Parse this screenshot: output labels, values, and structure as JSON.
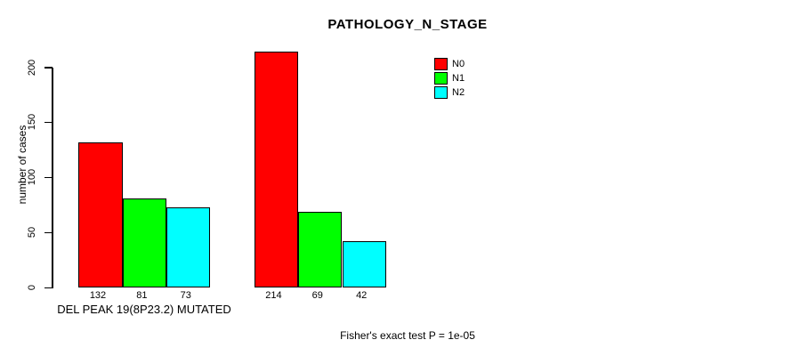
{
  "page": {
    "background_color": "#ffffff",
    "text_color": "#000000"
  },
  "chart_data": {
    "type": "bar",
    "title": "PATHOLOGY_N_STAGE",
    "ylabel": "number of cases",
    "xlabel": "DEL PEAK 19(8P23.2) MUTATED",
    "footer": "Fisher's exact test P = 1e-05",
    "grid": false,
    "legend_position": "top-right-inside",
    "y_ticks": [
      0,
      50,
      100,
      150,
      200
    ],
    "ylim": [
      0,
      215
    ],
    "categories": [
      "DEL PEAK 19(8P23.2) MUTATED",
      ""
    ],
    "series": [
      {
        "name": "N0",
        "color": "#ff0000",
        "values": [
          132,
          214
        ]
      },
      {
        "name": "N1",
        "color": "#00ff00",
        "values": [
          81,
          69
        ]
      },
      {
        "name": "N2",
        "color": "#00ffff",
        "values": [
          73,
          42
        ]
      }
    ],
    "bar_value_labels": [
      [
        "132",
        "81",
        "73"
      ],
      [
        "214",
        "69",
        "42"
      ]
    ]
  }
}
